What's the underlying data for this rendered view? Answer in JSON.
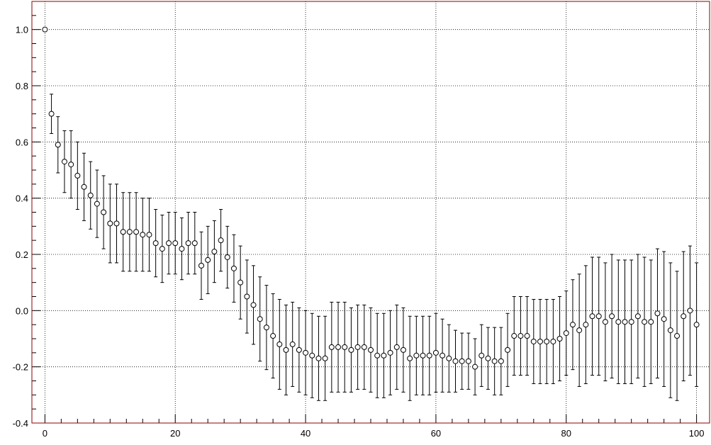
{
  "chart_data": {
    "type": "scatter",
    "title": "",
    "xlabel": "",
    "ylabel": "",
    "xlim": [
      -2,
      102
    ],
    "ylim": [
      -0.4,
      1.1
    ],
    "x_ticks": [
      0,
      20,
      40,
      60,
      80,
      100
    ],
    "x_tick_labels": [
      "0",
      "20",
      "40",
      "60",
      "80",
      "100"
    ],
    "y_ticks": [
      -0.4,
      -0.2,
      0.0,
      0.2,
      0.4,
      0.6,
      0.8,
      1.0
    ],
    "y_tick_labels": [
      "-0.4",
      "-0.2",
      "0.0",
      "0.2",
      "0.4",
      "0.6",
      "0.8",
      "1.0"
    ],
    "grid": true,
    "frame_color": "#8b0000",
    "marker_color": "#000000",
    "series": [
      {
        "x": [
          0,
          1,
          2,
          3,
          4,
          5,
          6,
          7,
          8,
          9,
          10,
          11,
          12,
          13,
          14,
          15,
          16,
          17,
          18,
          19,
          20,
          21,
          22,
          23,
          24,
          25,
          26,
          27,
          28,
          29,
          30,
          31,
          32,
          33,
          34,
          35,
          36,
          37,
          38,
          39,
          40,
          41,
          42,
          43,
          44,
          45,
          46,
          47,
          48,
          49,
          50,
          51,
          52,
          53,
          54,
          55,
          56,
          57,
          58,
          59,
          60,
          61,
          62,
          63,
          64,
          65,
          66,
          67,
          68,
          69,
          70,
          71,
          72,
          73,
          74,
          75,
          76,
          77,
          78,
          79,
          80,
          81,
          82,
          83,
          84,
          85,
          86,
          87,
          88,
          89,
          90,
          91,
          92,
          93,
          94,
          95,
          96,
          97,
          98,
          99,
          100
        ],
        "y": [
          1.0,
          0.7,
          0.59,
          0.53,
          0.52,
          0.48,
          0.44,
          0.41,
          0.38,
          0.35,
          0.31,
          0.31,
          0.28,
          0.28,
          0.28,
          0.27,
          0.27,
          0.24,
          0.22,
          0.24,
          0.24,
          0.22,
          0.24,
          0.24,
          0.16,
          0.18,
          0.21,
          0.25,
          0.19,
          0.15,
          0.1,
          0.05,
          0.02,
          -0.03,
          -0.06,
          -0.09,
          -0.12,
          -0.14,
          -0.12,
          -0.14,
          -0.15,
          -0.16,
          -0.17,
          -0.17,
          -0.13,
          -0.13,
          -0.13,
          -0.14,
          -0.13,
          -0.13,
          -0.14,
          -0.16,
          -0.16,
          -0.15,
          -0.13,
          -0.14,
          -0.17,
          -0.16,
          -0.16,
          -0.16,
          -0.15,
          -0.16,
          -0.17,
          -0.18,
          -0.18,
          -0.18,
          -0.2,
          -0.16,
          -0.17,
          -0.18,
          -0.18,
          -0.14,
          -0.09,
          -0.09,
          -0.09,
          -0.11,
          -0.11,
          -0.11,
          -0.11,
          -0.1,
          -0.08,
          -0.05,
          -0.07,
          -0.05,
          -0.02,
          -0.02,
          -0.04,
          -0.02,
          -0.04,
          -0.04,
          -0.04,
          -0.02,
          -0.04,
          -0.04,
          -0.01,
          -0.03,
          -0.07,
          -0.09,
          -0.02,
          0.0,
          -0.05
        ],
        "err": [
          0,
          0.07,
          0.1,
          0.11,
          0.12,
          0.12,
          0.12,
          0.12,
          0.12,
          0.13,
          0.14,
          0.14,
          0.14,
          0.14,
          0.14,
          0.13,
          0.13,
          0.12,
          0.12,
          0.11,
          0.11,
          0.11,
          0.11,
          0.11,
          0.12,
          0.12,
          0.11,
          0.11,
          0.11,
          0.12,
          0.13,
          0.13,
          0.14,
          0.15,
          0.15,
          0.15,
          0.16,
          0.16,
          0.15,
          0.15,
          0.15,
          0.15,
          0.15,
          0.15,
          0.16,
          0.16,
          0.16,
          0.15,
          0.15,
          0.15,
          0.15,
          0.15,
          0.15,
          0.15,
          0.15,
          0.15,
          0.15,
          0.14,
          0.14,
          0.14,
          0.14,
          0.13,
          0.12,
          0.11,
          0.1,
          0.1,
          0.1,
          0.11,
          0.11,
          0.12,
          0.12,
          0.13,
          0.14,
          0.14,
          0.14,
          0.15,
          0.15,
          0.15,
          0.15,
          0.15,
          0.15,
          0.16,
          0.2,
          0.21,
          0.21,
          0.21,
          0.21,
          0.22,
          0.22,
          0.22,
          0.22,
          0.22,
          0.23,
          0.22,
          0.23,
          0.24,
          0.24,
          0.23,
          0.23,
          0.23,
          0.22
        ]
      }
    ]
  }
}
